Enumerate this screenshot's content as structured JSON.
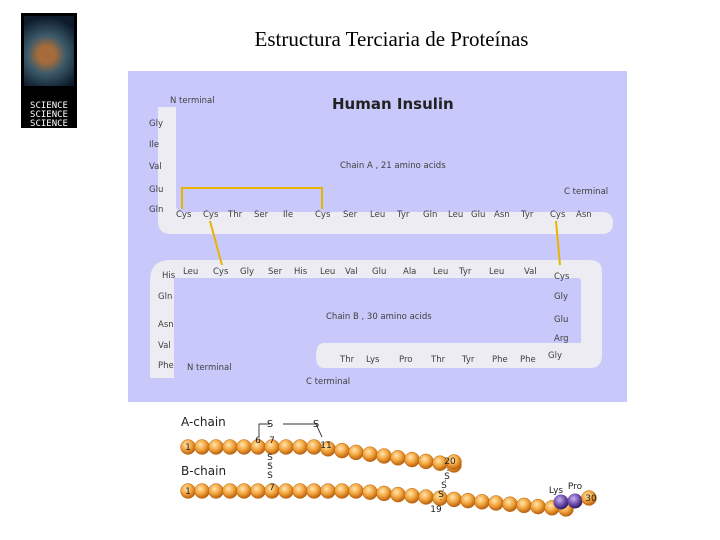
{
  "slide": {
    "title": "Estructura Terciaria de Proteínas"
  },
  "logo": {
    "lines": [
      "SCIENCE",
      "SCIENCE",
      "SCIENCE"
    ]
  },
  "insulin": {
    "title": "Human Insulin",
    "chain_a_label": "Chain A ,  21 amino acids",
    "chain_b_label": "Chain B ,  30 amino acids",
    "n_terminal_a": "N terminal",
    "c_terminal_a": "C terminal",
    "n_terminal_b": "N terminal",
    "c_terminal_b": "C terminal",
    "chain_a": [
      "Gly",
      "Ile",
      "Val",
      "Glu",
      "Gln",
      "Cys",
      "Cys",
      "Thr",
      "Ser",
      "Ile",
      "Cys",
      "Ser",
      "Leu",
      "Tyr",
      "Gln",
      "Leu",
      "Glu",
      "Asn",
      "Tyr",
      "Cys",
      "Asn"
    ],
    "chain_b": [
      "Phe",
      "Val",
      "Asn",
      "Gln",
      "His",
      "Leu",
      "Cys",
      "Gly",
      "Ser",
      "His",
      "Leu",
      "Val",
      "Glu",
      "Ala",
      "Leu",
      "Tyr",
      "Leu",
      "Val",
      "Cys",
      "Gly",
      "Glu",
      "Arg",
      "Gly",
      "Phe",
      "Phe",
      "Tyr",
      "Thr",
      "Pro",
      "Lys",
      "Thr"
    ],
    "colors": {
      "background": "#c8c8fa",
      "track": "#ececf2",
      "bond": "#e8b400",
      "text": "#404040",
      "title": "#222222"
    }
  },
  "chain_diagram": {
    "a_label": "A-chain",
    "b_label": "B-chain",
    "sulfur": "S",
    "numbers": {
      "a_start": "1",
      "a_6": "6",
      "a_7": "7",
      "a_11": "11",
      "a_20": "20",
      "b_start": "1",
      "b_7": "7",
      "b_19": "19",
      "b_30": "30"
    },
    "lys": "Lys",
    "pro": "Pro",
    "colors": {
      "bead": "#f2a33a",
      "bead_dark": "#c06a10",
      "purple": "#6a4aa8"
    }
  }
}
